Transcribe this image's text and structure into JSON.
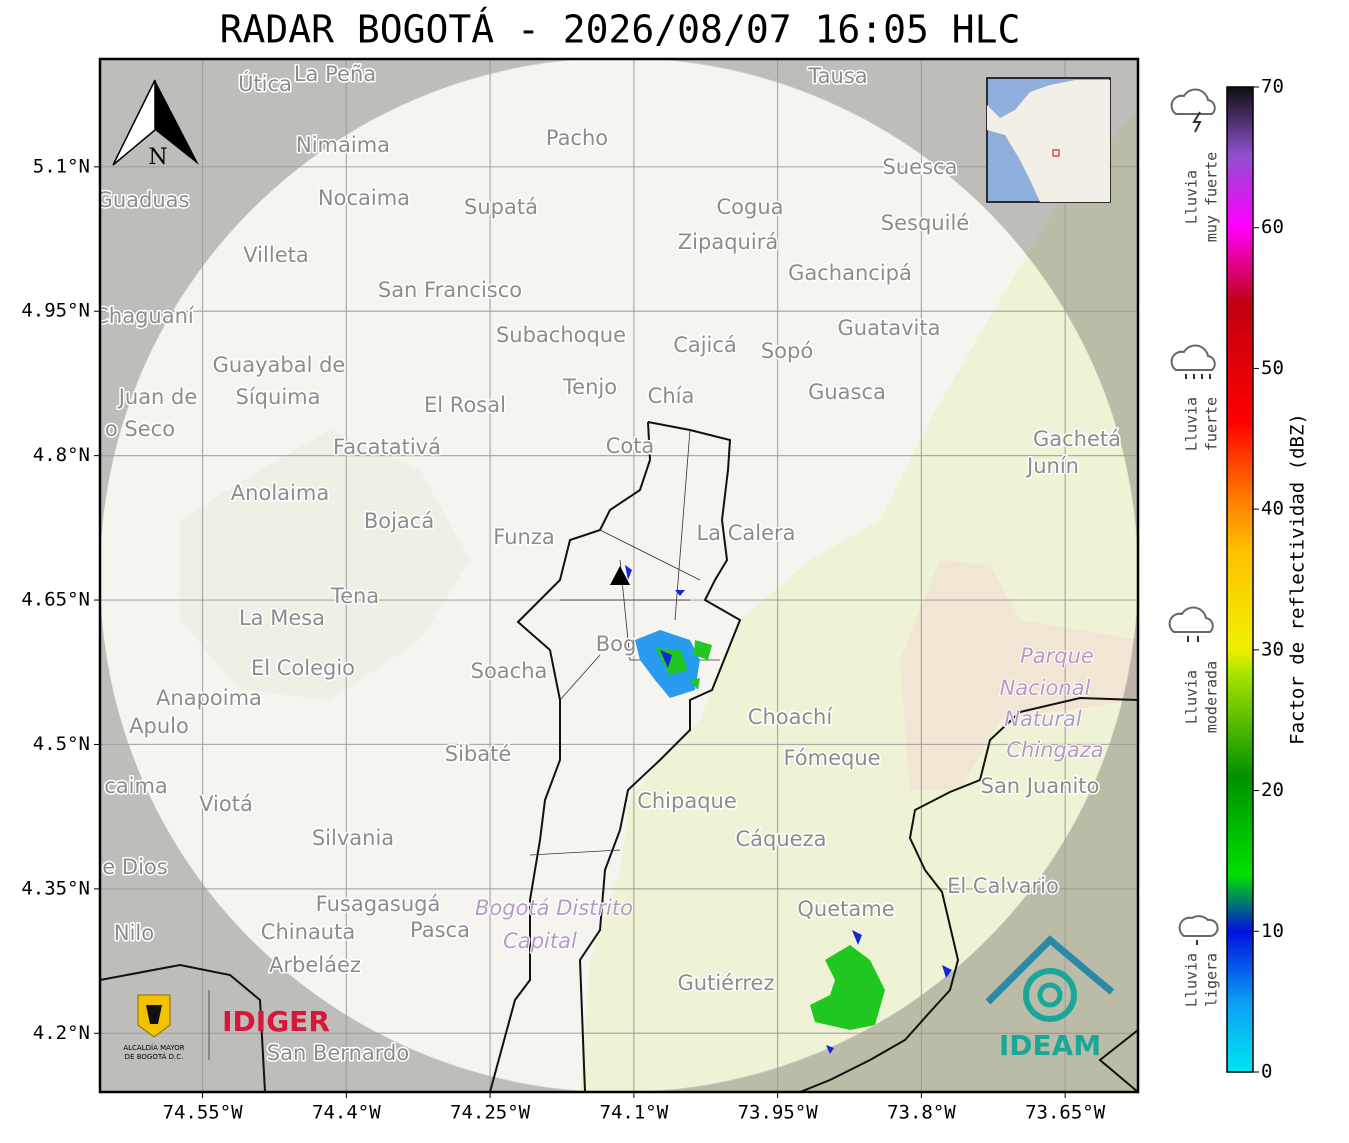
{
  "title": "RADAR BOGOTÁ - 2026/08/07 16:05 HLC",
  "map": {
    "xlim": [
      -74.657,
      -73.574
    ],
    "ylim": [
      4.139,
      5.212
    ],
    "xticks": [
      {
        "value": -74.55,
        "label": "74.55°W"
      },
      {
        "value": -74.4,
        "label": "74.4°W"
      },
      {
        "value": -74.25,
        "label": "74.25°W"
      },
      {
        "value": -74.1,
        "label": "74.1°W"
      },
      {
        "value": -73.95,
        "label": "73.95°W"
      },
      {
        "value": -73.8,
        "label": "73.8°W"
      },
      {
        "value": -73.65,
        "label": "73.65°W"
      }
    ],
    "yticks": [
      {
        "value": 5.1,
        "label": "5.1°N"
      },
      {
        "value": 4.95,
        "label": "4.95°N"
      },
      {
        "value": 4.8,
        "label": "4.8°N"
      },
      {
        "value": 4.65,
        "label": "4.65°N"
      },
      {
        "value": 4.5,
        "label": "4.5°N"
      },
      {
        "value": 4.35,
        "label": "4.35°N"
      },
      {
        "value": 4.2,
        "label": "4.2°N"
      }
    ],
    "grid": true,
    "north_label": "N",
    "places": [
      "Útica",
      "La Peña",
      "Tausa",
      "Pacho",
      "Nimaima",
      "Suesca",
      "Guaduas",
      "Nocaima",
      "Supatá",
      "Cogua",
      "Sesquilé",
      "Zipaquirá",
      "Villeta",
      "Gachancipá",
      "San Francisco",
      "Chaguaní",
      "Guatavita",
      "Subachoque",
      "Cajicá",
      "Sopó",
      "Guayabal de",
      "Síquima",
      "Juan de",
      "o Seco",
      "Tenjo",
      "Chía",
      "Guasca",
      "El Rosal",
      "Facatativá",
      "Cota",
      "Gachetá",
      "Junín",
      "Anolaima",
      "Bojacá",
      "Funza",
      "La Calera",
      "Tena",
      "La Mesa",
      "Soacha",
      "El Colegio",
      "Anapoima",
      "Apulo",
      "Choachí",
      "Sibaté",
      "Fómeque",
      "San Juanito",
      "caima",
      "Viotá",
      "Chipaque",
      "Cáqueza",
      "Silvania",
      "e Dios",
      "El Calvario",
      "Fusagasugá",
      "Quetame",
      "Nilo",
      "Chinauta",
      "Pasca",
      "Arbeláez",
      "Gutiérrez",
      "San Bernardo",
      "Bogotá",
      "Parque",
      "Nacional",
      "Natural",
      "Chingaza",
      "Bogotá Distrito",
      "Capital"
    ]
  },
  "colorbar": {
    "label": "Factor de reflectividad (dBZ)",
    "lim": [
      0,
      70
    ],
    "ticks": [
      0,
      10,
      20,
      30,
      40,
      50,
      60,
      70
    ]
  },
  "legend": [
    [
      "Lluvia",
      "muy fuerte"
    ],
    [
      "Lluvia",
      "fuerte"
    ],
    [
      "Lluvia",
      "moderada"
    ],
    [
      "Lluvia",
      "ligera"
    ]
  ],
  "logos": {
    "alcaldia": [
      "ALCALDÍA MAYOR",
      "DE BOGOTÁ D.C."
    ],
    "idiger": "IDIGER",
    "ideam": "IDEAM"
  }
}
